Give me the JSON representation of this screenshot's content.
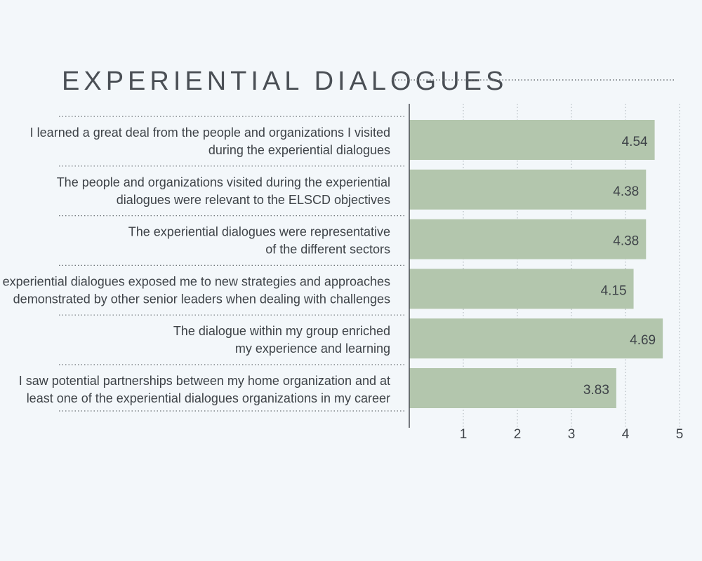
{
  "chart_data": {
    "type": "bar",
    "orientation": "horizontal",
    "title": "EXPERIENTIAL DIALOGUES",
    "categories": [
      [
        "I learned a great deal from the people and organizations I visited",
        "during the experiential dialogues"
      ],
      [
        "The people and organizations visited during the experiential",
        "dialogues were relevant to the ELSCD objectives"
      ],
      [
        "The experiential dialogues were representative",
        "of the different sectors"
      ],
      [
        "The experiential dialogues exposed me to new strategies and approaches",
        "demonstrated by other senior leaders when dealing with challenges"
      ],
      [
        "The dialogue within my group enriched",
        "my experience and learning"
      ],
      [
        "I saw potential partnerships between my home organization and at",
        "least one of the experiential dialogues organizations in my career"
      ]
    ],
    "values": [
      4.54,
      4.38,
      4.38,
      4.15,
      4.69,
      3.83
    ],
    "value_labels": [
      "4.54",
      "4.38",
      "4.38",
      "4.15",
      "4.69",
      "3.83"
    ],
    "xlim": [
      0,
      5
    ],
    "xticks": [
      "1",
      "2",
      "3",
      "4",
      "5"
    ],
    "grid": true,
    "colors": {
      "bar": "#b3c6ad",
      "text": "#3e4348",
      "title": "#4a4f55",
      "grid": "#a9b0b5",
      "axis": "#4a4f55",
      "background": "#f3f7fa"
    }
  }
}
